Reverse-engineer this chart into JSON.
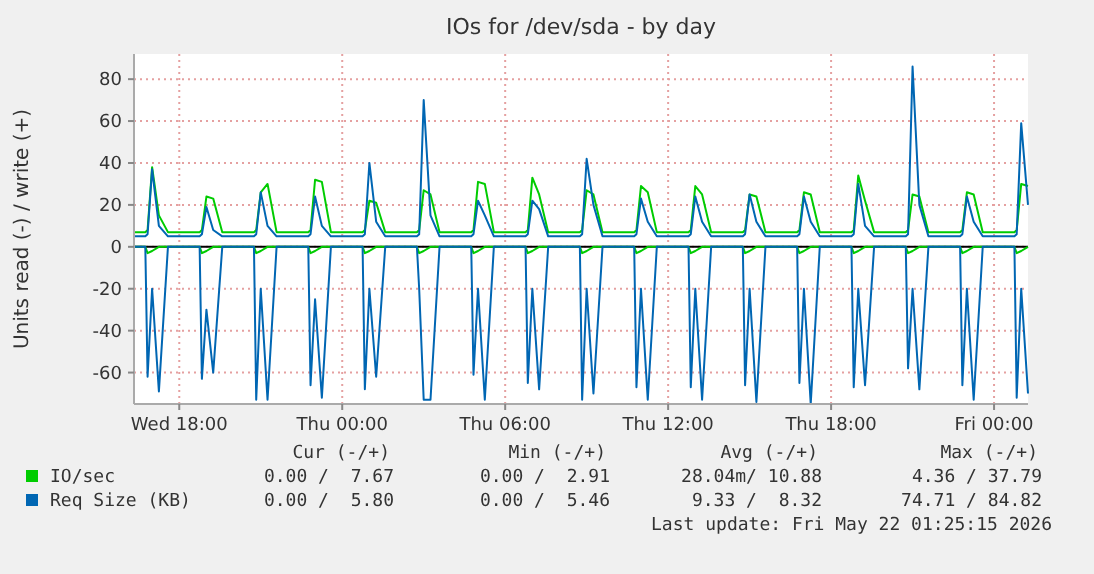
{
  "chart_data": {
    "type": "line",
    "title": "IOs for /dev/sda - by day",
    "ylabel": "Units read (-) / write (+)",
    "x": [
      "2026-05-20T16:20",
      "2026-05-20T16:45",
      "2026-05-20T16:50",
      "2026-05-20T17:00",
      "2026-05-20T17:15",
      "2026-05-20T17:35",
      "2026-05-20T18:45",
      "2026-05-20T18:50",
      "2026-05-20T19:00",
      "2026-05-20T19:15",
      "2026-05-20T19:35",
      "2026-05-20T20:45",
      "2026-05-20T20:50",
      "2026-05-20T21:00",
      "2026-05-20T21:15",
      "2026-05-20T21:35",
      "2026-05-20T22:45",
      "2026-05-20T22:50",
      "2026-05-20T23:00",
      "2026-05-20T23:15",
      "2026-05-20T23:35",
      "2026-05-21T00:45",
      "2026-05-21T00:50",
      "2026-05-21T01:00",
      "2026-05-21T01:15",
      "2026-05-21T01:35",
      "2026-05-21T02:45",
      "2026-05-21T02:50",
      "2026-05-21T03:00",
      "2026-05-21T03:15",
      "2026-05-21T03:35",
      "2026-05-21T04:45",
      "2026-05-21T04:50",
      "2026-05-21T05:00",
      "2026-05-21T05:15",
      "2026-05-21T05:35",
      "2026-05-21T06:45",
      "2026-05-21T06:50",
      "2026-05-21T07:00",
      "2026-05-21T07:15",
      "2026-05-21T07:35",
      "2026-05-21T08:45",
      "2026-05-21T08:50",
      "2026-05-21T09:00",
      "2026-05-21T09:15",
      "2026-05-21T09:35",
      "2026-05-21T10:45",
      "2026-05-21T10:50",
      "2026-05-21T11:00",
      "2026-05-21T11:15",
      "2026-05-21T11:35",
      "2026-05-21T12:45",
      "2026-05-21T12:50",
      "2026-05-21T13:00",
      "2026-05-21T13:15",
      "2026-05-21T13:35",
      "2026-05-21T14:45",
      "2026-05-21T14:50",
      "2026-05-21T15:00",
      "2026-05-21T15:15",
      "2026-05-21T15:35",
      "2026-05-21T16:45",
      "2026-05-21T16:50",
      "2026-05-21T17:00",
      "2026-05-21T17:15",
      "2026-05-21T17:35",
      "2026-05-21T18:45",
      "2026-05-21T18:50",
      "2026-05-21T19:00",
      "2026-05-21T19:15",
      "2026-05-21T19:35",
      "2026-05-21T20:45",
      "2026-05-21T20:50",
      "2026-05-21T21:00",
      "2026-05-21T21:15",
      "2026-05-21T21:35",
      "2026-05-21T22:45",
      "2026-05-21T22:50",
      "2026-05-21T23:00",
      "2026-05-21T23:15",
      "2026-05-21T23:35",
      "2026-05-22T00:45",
      "2026-05-22T00:50",
      "2026-05-22T01:00",
      "2026-05-22T01:15"
    ],
    "series": [
      {
        "name": "IO/sec",
        "color": "#00cc00",
        "values": [
          7,
          7,
          8,
          38,
          15,
          7,
          7,
          8,
          24,
          23,
          7,
          7,
          8,
          26,
          30,
          7,
          7,
          8,
          32,
          31,
          7,
          7,
          8,
          22,
          21,
          7,
          7,
          8,
          27,
          25,
          7,
          7,
          8,
          31,
          30,
          7,
          7,
          8,
          33,
          25,
          7,
          7,
          8,
          27,
          25,
          7,
          7,
          8,
          29,
          26,
          7,
          7,
          8,
          29,
          25,
          7,
          7,
          8,
          25,
          24,
          7,
          7,
          8,
          26,
          25,
          7,
          7,
          8,
          34,
          22,
          7,
          7,
          8,
          25,
          24,
          7,
          7,
          8,
          26,
          25,
          7,
          7,
          8,
          30,
          29
        ]
      },
      {
        "name": "Req Size (KB)",
        "color": "#0066b3",
        "values": [
          5,
          5,
          6,
          37,
          10,
          5,
          5,
          6,
          19,
          8,
          5,
          5,
          6,
          26,
          10,
          5,
          5,
          6,
          24,
          10,
          5,
          5,
          6,
          40,
          12,
          5,
          5,
          6,
          70,
          15,
          5,
          5,
          6,
          22,
          15,
          5,
          5,
          6,
          22,
          18,
          5,
          5,
          6,
          42,
          20,
          5,
          5,
          6,
          23,
          12,
          5,
          5,
          6,
          24,
          12,
          5,
          5,
          6,
          25,
          12,
          5,
          5,
          6,
          24,
          12,
          5,
          5,
          6,
          30,
          10,
          5,
          5,
          6,
          86,
          20,
          5,
          5,
          6,
          24,
          12,
          5,
          5,
          6,
          59,
          20
        ]
      },
      {
        "color": "#00cc00",
        "values": [
          0,
          0,
          -3,
          -2,
          0,
          0,
          0,
          -3,
          -2,
          0,
          0,
          0,
          -3,
          -2,
          0,
          0,
          0,
          -3,
          -2,
          0,
          0,
          0,
          -3,
          -2,
          0,
          0,
          0,
          -3,
          -2,
          0,
          0,
          0,
          -3,
          -2,
          0,
          0,
          0,
          -3,
          -2,
          0,
          0,
          0,
          -3,
          -2,
          0,
          0,
          0,
          -3,
          -2,
          0,
          0,
          0,
          -3,
          -2,
          0,
          0,
          0,
          -3,
          -2,
          0,
          0,
          0,
          -3,
          -2,
          0,
          0,
          0,
          -3,
          -2,
          0,
          0,
          0,
          -3,
          -2,
          0,
          0,
          0,
          -3,
          -2,
          0,
          0,
          0,
          -3,
          -2,
          0
        ]
      },
      {
        "color": "#0066b3",
        "values": [
          0,
          0,
          -62,
          -20,
          -69,
          0,
          0,
          -63,
          -30,
          -60,
          0,
          0,
          -73,
          -20,
          -73,
          0,
          0,
          -66,
          -25,
          -72,
          0,
          0,
          -68,
          -20,
          -62,
          0,
          0,
          -20,
          -73,
          -73,
          0,
          0,
          -61,
          -20,
          -73,
          0,
          0,
          -65,
          -20,
          -68,
          0,
          0,
          -73,
          -20,
          -70,
          0,
          0,
          -67,
          -20,
          -73,
          0,
          0,
          -67,
          -20,
          -73,
          0,
          0,
          -66,
          -20,
          -74,
          0,
          0,
          -65,
          -20,
          -75,
          0,
          0,
          -67,
          -20,
          -66,
          0,
          0,
          -58,
          -20,
          -68,
          0,
          0,
          -66,
          -20,
          -73,
          0,
          0,
          -72,
          -20,
          -70
        ]
      }
    ],
    "xlim": [
      "2026-05-20T16:20",
      "2026-05-22T01:15"
    ],
    "xticks": [
      {
        "value": "2026-05-20T18:00",
        "label": "Wed 18:00"
      },
      {
        "value": "2026-05-21T00:00",
        "label": "Thu 00:00"
      },
      {
        "value": "2026-05-21T06:00",
        "label": "Thu 06:00"
      },
      {
        "value": "2026-05-21T12:00",
        "label": "Thu 12:00"
      },
      {
        "value": "2026-05-21T18:00",
        "label": "Thu 18:00"
      },
      {
        "value": "2026-05-22T00:00",
        "label": "Fri 00:00"
      }
    ],
    "ylim": [
      -75,
      92
    ],
    "yticks": [
      -60,
      -40,
      -20,
      0,
      20,
      40,
      60,
      80
    ],
    "ref_lines": [
      {
        "axis": "y",
        "value": 0,
        "color": "#000000"
      }
    ],
    "grid": true,
    "legend": "bottom",
    "annotations": [
      "Cur (-/+)",
      "Min (-/+)",
      "Avg (-/+)",
      "Max (-/+)",
      "0.00 /  7.67",
      "0.00 /  2.91",
      "28.04m/ 10.88",
      "4.36 / 37.79",
      "0.00 /  5.80",
      "0.00 /  5.46",
      "9.33 /  8.32",
      "74.71 / 84.82",
      "Last update: Fri May 22 01:25:15 2026"
    ]
  }
}
